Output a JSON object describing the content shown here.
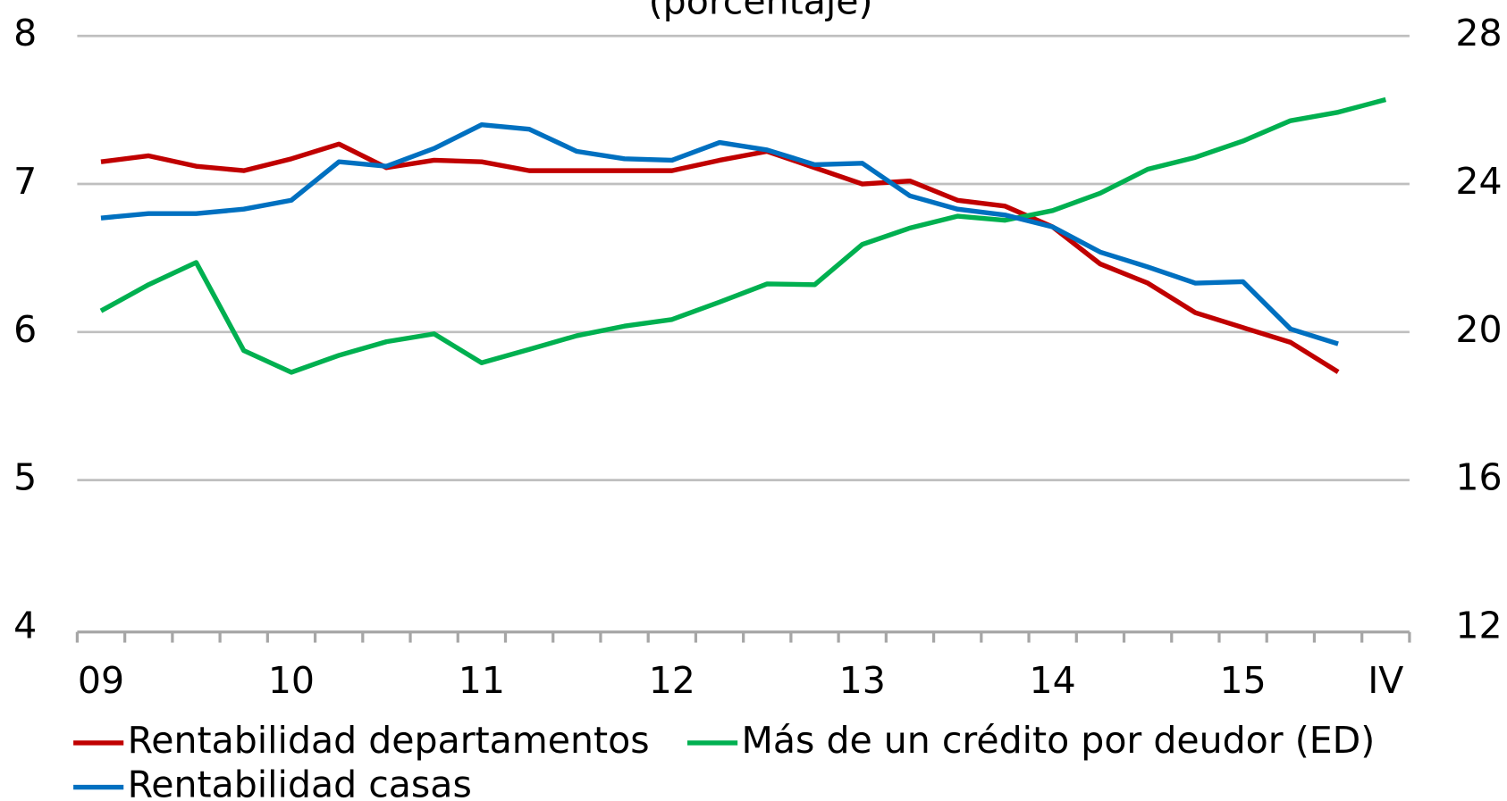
{
  "chart_data": {
    "type": "line",
    "subtitle": "(porcentaje)",
    "categories": [
      "09",
      null,
      null,
      null,
      "10",
      null,
      null,
      null,
      "11",
      null,
      null,
      null,
      "12",
      null,
      null,
      null,
      "13",
      null,
      null,
      null,
      "14",
      null,
      null,
      null,
      "15",
      null,
      null,
      "IV"
    ],
    "series": [
      {
        "name": "Rentabilidad departamentos",
        "color": "#c00000",
        "values": [
          7.15,
          7.19,
          7.12,
          7.09,
          7.17,
          7.27,
          7.11,
          7.16,
          7.15,
          7.09,
          7.09,
          7.09,
          7.09,
          7.16,
          7.22,
          7.11,
          7.0,
          7.02,
          6.89,
          6.85,
          6.71,
          6.46,
          6.33,
          6.13,
          6.03,
          5.93,
          5.73,
          null
        ]
      },
      {
        "name": "Más de un crédito por deudor (ED)",
        "color": "#00b050",
        "axis": "y2",
        "values": [
          20.57,
          21.28,
          21.88,
          19.5,
          18.91,
          19.37,
          19.74,
          19.95,
          19.17,
          19.53,
          19.9,
          20.16,
          20.34,
          20.81,
          21.3,
          21.28,
          22.37,
          22.81,
          23.13,
          23.02,
          23.28,
          23.75,
          24.4,
          24.72,
          25.16,
          25.71,
          25.94,
          26.28
        ]
      },
      {
        "name": "Rentabilidad casas",
        "color": "#0070c0",
        "values": [
          6.77,
          6.8,
          6.8,
          6.83,
          6.89,
          7.15,
          7.12,
          7.24,
          7.4,
          7.37,
          7.22,
          7.17,
          7.16,
          7.28,
          7.23,
          7.13,
          7.14,
          6.92,
          6.83,
          6.79,
          6.71,
          6.54,
          6.44,
          6.33,
          6.34,
          6.02,
          5.92,
          null
        ]
      }
    ],
    "ylim": [
      4,
      8
    ],
    "yticks": [
      4,
      5,
      6,
      7,
      8
    ],
    "y2lim": [
      12,
      28
    ],
    "y2ticks": [
      12,
      16,
      20,
      24,
      28
    ],
    "grid": true
  }
}
